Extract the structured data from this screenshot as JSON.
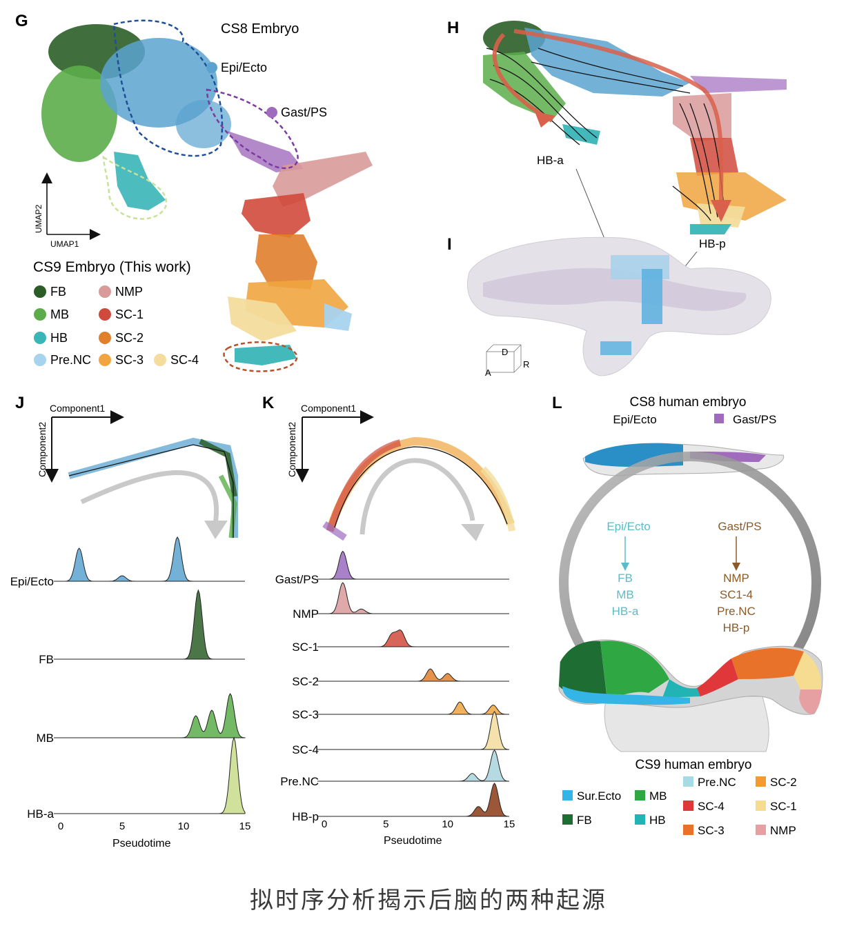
{
  "panels": {
    "G": {
      "letter": "G",
      "title": "CS8 Embryo",
      "cs8_labels": [
        "Epi/Ecto",
        "Gast/PS"
      ],
      "cs8_colors": [
        "#5ba3cf",
        "#a06bbd"
      ],
      "axis_x": "UMAP1",
      "axis_y": "UMAP2",
      "legend_title": "CS9 Embryo (This work)",
      "legend": [
        {
          "label": "FB",
          "color": "#2b5e27"
        },
        {
          "label": "MB",
          "color": "#5cad4a"
        },
        {
          "label": "HB",
          "color": "#3ab5b8"
        },
        {
          "label": "Pre.NC",
          "color": "#a8d3ee"
        },
        {
          "label": "NMP",
          "color": "#d99a9a"
        },
        {
          "label": "SC-1",
          "color": "#d04a3c"
        },
        {
          "label": "SC-2",
          "color": "#e07f2c"
        },
        {
          "label": "SC-3",
          "color": "#f0a540"
        },
        {
          "label": "SC-4",
          "color": "#f3dc9c"
        }
      ]
    },
    "H": {
      "letter": "H",
      "labels": [
        "HB-a",
        "HB-p"
      ]
    },
    "I": {
      "letter": "I",
      "axis_d": "D",
      "axis_a": "A",
      "axis_r": "R"
    },
    "J": {
      "letter": "J",
      "component1": "Component1",
      "component2": "Component2",
      "xlabel": "Pseudotime",
      "ticks": [
        "0",
        "5",
        "10",
        "15"
      ]
    },
    "K": {
      "letter": "K",
      "component1": "Component1",
      "component2": "Component2",
      "xlabel": "Pseudotime",
      "ticks": [
        "0",
        "5",
        "10",
        "15"
      ]
    },
    "L": {
      "letter": "L",
      "title_top": "CS8 human embryo",
      "top_left": "Epi/Ecto",
      "top_right": "Gast/PS",
      "left_from": "Epi/Ecto",
      "left_to": [
        "FB",
        "MB",
        "HB-a"
      ],
      "right_from": "Gast/PS",
      "right_to": [
        "NMP",
        "SC1-4",
        "Pre.NC",
        "HB-p"
      ],
      "title_bottom": "CS9 human embryo",
      "legend": [
        {
          "label": "Sur.Ecto",
          "color": "#35b4e6"
        },
        {
          "label": "FB",
          "color": "#1e6e34"
        },
        {
          "label": "MB",
          "color": "#2fa843"
        },
        {
          "label": "HB",
          "color": "#22b3b5"
        },
        {
          "label": "Pre.NC",
          "color": "#a7dbe3"
        },
        {
          "label": "SC-4",
          "color": "#e0373b"
        },
        {
          "label": "SC-3",
          "color": "#e8722a"
        },
        {
          "label": "SC-2",
          "color": "#f59a33"
        },
        {
          "label": "SC-1",
          "color": "#f5dc90"
        },
        {
          "label": "NMP",
          "color": "#e6a0a2"
        }
      ]
    }
  },
  "chart_data": [
    {
      "type": "area",
      "panel": "J",
      "xlabel": "Pseudotime",
      "xlim": [
        0,
        15
      ],
      "series": [
        {
          "name": "Epi/Ecto",
          "color": "#5ba3cf",
          "peaks": [
            {
              "x": 1.5,
              "h": 0.6
            },
            {
              "x": 5,
              "h": 0.1
            },
            {
              "x": 9.5,
              "h": 0.8
            }
          ]
        },
        {
          "name": "FB",
          "color": "#2b5e27",
          "peaks": [
            {
              "x": 11.2,
              "h": 1.0
            }
          ]
        },
        {
          "name": "MB",
          "color": "#5cad4a",
          "peaks": [
            {
              "x": 11,
              "h": 0.4
            },
            {
              "x": 12.3,
              "h": 0.5
            },
            {
              "x": 13.8,
              "h": 0.8
            }
          ]
        },
        {
          "name": "HB-a",
          "color": "#c8dc8a",
          "peaks": [
            {
              "x": 14.1,
              "h": 1.0
            }
          ]
        }
      ]
    },
    {
      "type": "area",
      "panel": "K",
      "xlabel": "Pseudotime",
      "xlim": [
        0,
        15
      ],
      "series": [
        {
          "name": "Gast/PS",
          "color": "#9a6bc0",
          "peaks": [
            {
              "x": 1.5,
              "h": 0.9
            }
          ]
        },
        {
          "name": "NMP",
          "color": "#d99a9a",
          "peaks": [
            {
              "x": 1.5,
              "h": 1.0
            },
            {
              "x": 3,
              "h": 0.15
            }
          ]
        },
        {
          "name": "SC-1",
          "color": "#d04a3c",
          "peaks": [
            {
              "x": 5.5,
              "h": 0.4
            },
            {
              "x": 6.2,
              "h": 0.5
            }
          ]
        },
        {
          "name": "SC-2",
          "color": "#e07f2c",
          "peaks": [
            {
              "x": 8.6,
              "h": 0.4
            },
            {
              "x": 10,
              "h": 0.25
            }
          ]
        },
        {
          "name": "SC-3",
          "color": "#f0a540",
          "peaks": [
            {
              "x": 11,
              "h": 0.4
            },
            {
              "x": 13.7,
              "h": 0.3
            }
          ]
        },
        {
          "name": "SC-4",
          "color": "#f3dc9c",
          "peaks": [
            {
              "x": 13.8,
              "h": 1.0
            }
          ]
        },
        {
          "name": "Pre.NC",
          "color": "#a8d3dc",
          "peaks": [
            {
              "x": 12,
              "h": 0.25
            },
            {
              "x": 13.8,
              "h": 1.0
            }
          ]
        },
        {
          "name": "HB-p",
          "color": "#8b3a16",
          "peaks": [
            {
              "x": 12.5,
              "h": 0.3
            },
            {
              "x": 13.8,
              "h": 1.0
            }
          ]
        }
      ]
    }
  ],
  "caption": "拟时序分析揭示后脑的两种起源"
}
